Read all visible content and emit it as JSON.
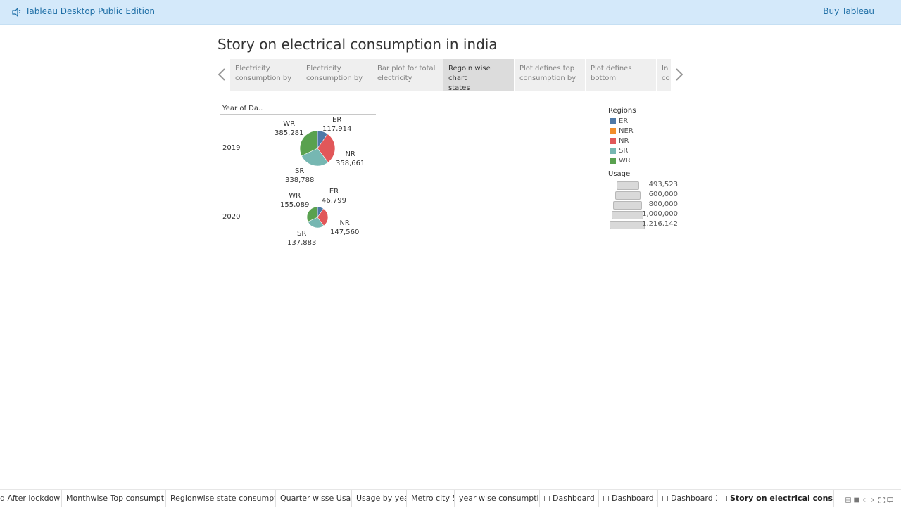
{
  "app": {
    "title": "Tableau Desktop Public Edition",
    "buy_label": "Buy Tableau"
  },
  "story": {
    "title": "Story on electrical consumption in india",
    "points": [
      {
        "line1": "Electricity",
        "line2": "consumption by"
      },
      {
        "line1": "Electricity",
        "line2": "consumption by"
      },
      {
        "line1": "Bar plot for total",
        "line2": "electricity"
      },
      {
        "line1": "Regoin wise chart",
        "line2": "states"
      },
      {
        "line1": "Plot defines top",
        "line2": "consumption by"
      },
      {
        "line1": "Plot defines",
        "line2": "bottom"
      },
      {
        "line1": "In",
        "line2": "co"
      }
    ],
    "active_point": 3
  },
  "viz": {
    "column_header": "Year of Da..",
    "rows": [
      {
        "year": "2019",
        "slices": [
          {
            "region": "ER",
            "value": "117,914"
          },
          {
            "region": "NR",
            "value": "358,661"
          },
          {
            "region": "SR",
            "value": "338,788"
          },
          {
            "region": "WR",
            "value": "385,281"
          }
        ]
      },
      {
        "year": "2020",
        "slices": [
          {
            "region": "ER",
            "value": "46,799"
          },
          {
            "region": "NR",
            "value": "147,560"
          },
          {
            "region": "SR",
            "value": "137,883"
          },
          {
            "region": "WR",
            "value": "155,089"
          }
        ]
      }
    ]
  },
  "chart_data": {
    "type": "pie",
    "row_dimension": "Year of Da..",
    "size_measure": "Usage",
    "categories": [
      "ER",
      "NR",
      "SR",
      "WR"
    ],
    "series": [
      {
        "name": "2019",
        "values": [
          117914,
          358661,
          338788,
          385281
        ]
      },
      {
        "name": "2020",
        "values": [
          46799,
          147560,
          137883,
          155089
        ]
      }
    ],
    "colors": {
      "ER": "#4e79a7",
      "NER": "#f28e2b",
      "NR": "#e15759",
      "SR": "#76b7b2",
      "WR": "#59a14f"
    },
    "legend_placement": "right"
  },
  "legend": {
    "color_title": "Regions",
    "regions": [
      {
        "name": "ER",
        "color": "#4e79a7"
      },
      {
        "name": "NER",
        "color": "#f28e2b"
      },
      {
        "name": "NR",
        "color": "#e15759"
      },
      {
        "name": "SR",
        "color": "#76b7b2"
      },
      {
        "name": "WR",
        "color": "#59a14f"
      }
    ],
    "size_title": "Usage",
    "sizes": [
      {
        "label": "493,523",
        "value": 493523
      },
      {
        "label": "600,000",
        "value": 600000
      },
      {
        "label": "800,000",
        "value": 800000
      },
      {
        "label": "1,000,000",
        "value": 1000000
      },
      {
        "label": "1,216,142",
        "value": 1216142
      }
    ]
  },
  "tabs": [
    {
      "label": "d After lockdown",
      "kind": "sheet"
    },
    {
      "label": "Monthwise Top consumption",
      "kind": "sheet"
    },
    {
      "label": "Regionwise state consumption",
      "kind": "sheet"
    },
    {
      "label": "Quarter wisse Usage",
      "kind": "sheet"
    },
    {
      "label": "Usage by year",
      "kind": "sheet"
    },
    {
      "label": "Metro city 5",
      "kind": "sheet"
    },
    {
      "label": "year wise consumption",
      "kind": "sheet"
    },
    {
      "label": "Dashboard 1",
      "kind": "dashboard"
    },
    {
      "label": "Dashboard 2",
      "kind": "dashboard"
    },
    {
      "label": "Dashboard 3",
      "kind": "dashboard"
    },
    {
      "label": "Story on electrical consump...",
      "kind": "story"
    }
  ],
  "active_tab": 10
}
